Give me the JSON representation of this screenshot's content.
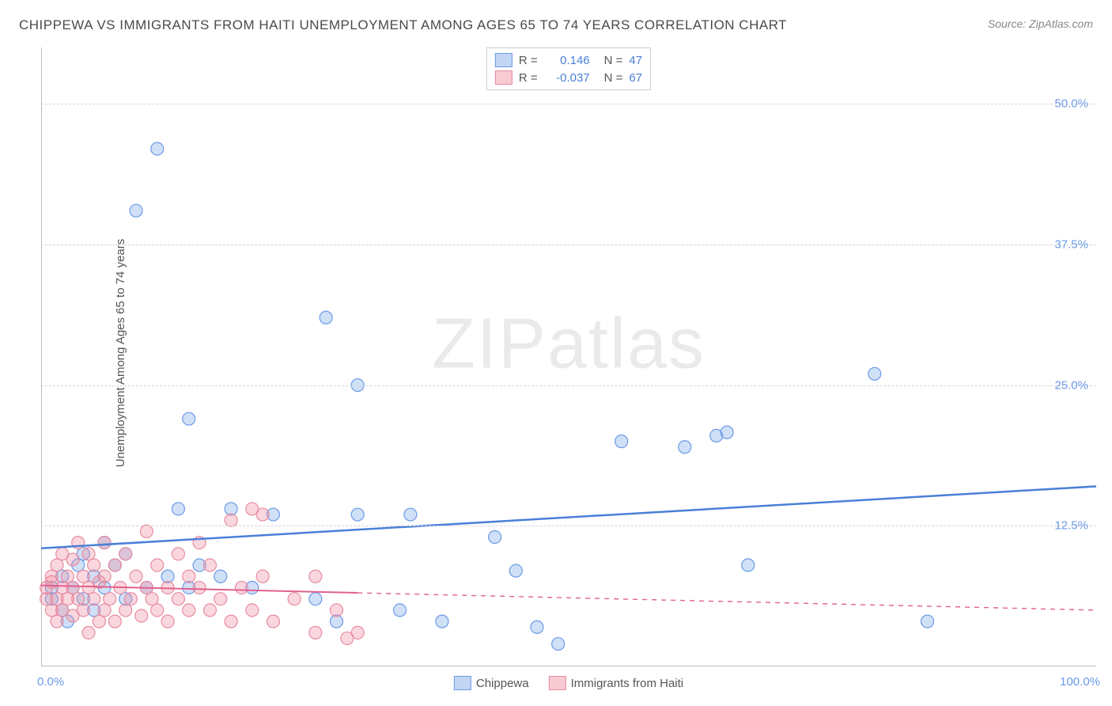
{
  "title": "CHIPPEWA VS IMMIGRANTS FROM HAITI UNEMPLOYMENT AMONG AGES 65 TO 74 YEARS CORRELATION CHART",
  "source": "Source: ZipAtlas.com",
  "y_axis_label": "Unemployment Among Ages 65 to 74 years",
  "watermark_zip": "ZIP",
  "watermark_atlas": "atlas",
  "chart": {
    "type": "scatter",
    "xlim": [
      0,
      100
    ],
    "ylim": [
      0,
      55
    ],
    "y_ticks": [
      12.5,
      25.0,
      37.5,
      50.0
    ],
    "y_tick_labels": [
      "12.5%",
      "25.0%",
      "37.5%",
      "50.0%"
    ],
    "x_min_label": "0.0%",
    "x_max_label": "100.0%",
    "grid_color": "#d5d5d5",
    "background_color": "#ffffff",
    "marker_radius": 8,
    "series": [
      {
        "name": "Chippewa",
        "fill": "rgba(120,165,230,0.35)",
        "stroke": "#6b9ae8",
        "r_value": "0.146",
        "n_value": "47",
        "trend": {
          "x1": 0,
          "y1": 10.5,
          "x2": 100,
          "y2": 16.0,
          "solid_until_x": 100,
          "color": "#4a7fd8",
          "width": 2.5
        },
        "points": [
          [
            1,
            6
          ],
          [
            1,
            7
          ],
          [
            2,
            5
          ],
          [
            2,
            8
          ],
          [
            2.5,
            4
          ],
          [
            3,
            7
          ],
          [
            3.5,
            9
          ],
          [
            4,
            6
          ],
          [
            4,
            10
          ],
          [
            5,
            5
          ],
          [
            5,
            8
          ],
          [
            6,
            7
          ],
          [
            6,
            11
          ],
          [
            7,
            9
          ],
          [
            8,
            6
          ],
          [
            8,
            10
          ],
          [
            9,
            40.5
          ],
          [
            10,
            7
          ],
          [
            11,
            46
          ],
          [
            12,
            8
          ],
          [
            13,
            14
          ],
          [
            14,
            22
          ],
          [
            14,
            7
          ],
          [
            15,
            9
          ],
          [
            17,
            8
          ],
          [
            18,
            14
          ],
          [
            20,
            7
          ],
          [
            22,
            13.5
          ],
          [
            26,
            6
          ],
          [
            27,
            31
          ],
          [
            28,
            4
          ],
          [
            30,
            13.5
          ],
          [
            30,
            25
          ],
          [
            34,
            5
          ],
          [
            35,
            13.5
          ],
          [
            38,
            4
          ],
          [
            43,
            11.5
          ],
          [
            45,
            8.5
          ],
          [
            47,
            3.5
          ],
          [
            49,
            2
          ],
          [
            55,
            20
          ],
          [
            61,
            19.5
          ],
          [
            64,
            20.5
          ],
          [
            65,
            20.8
          ],
          [
            67,
            9
          ],
          [
            79,
            26
          ],
          [
            84,
            4
          ]
        ]
      },
      {
        "name": "Immigrants from Haiti",
        "fill": "rgba(240,140,160,0.35)",
        "stroke": "#e88ba0",
        "r_value": "-0.037",
        "n_value": "67",
        "trend": {
          "x1": 0,
          "y1": 7.2,
          "x2": 100,
          "y2": 5.0,
          "solid_until_x": 30,
          "color": "#e06090",
          "width": 2
        },
        "points": [
          [
            0.5,
            6
          ],
          [
            0.5,
            7
          ],
          [
            1,
            5
          ],
          [
            1,
            7.5
          ],
          [
            1,
            8
          ],
          [
            1.5,
            4
          ],
          [
            1.5,
            6
          ],
          [
            1.5,
            9
          ],
          [
            2,
            5
          ],
          [
            2,
            7
          ],
          [
            2,
            10
          ],
          [
            2.5,
            6
          ],
          [
            2.5,
            8
          ],
          [
            3,
            4.5
          ],
          [
            3,
            7
          ],
          [
            3,
            9.5
          ],
          [
            3.5,
            6
          ],
          [
            3.5,
            11
          ],
          [
            4,
            5
          ],
          [
            4,
            8
          ],
          [
            4.5,
            3
          ],
          [
            4.5,
            7
          ],
          [
            4.5,
            10
          ],
          [
            5,
            6
          ],
          [
            5,
            9
          ],
          [
            5.5,
            4
          ],
          [
            5.5,
            7.5
          ],
          [
            6,
            5
          ],
          [
            6,
            8
          ],
          [
            6,
            11
          ],
          [
            6.5,
            6
          ],
          [
            7,
            4
          ],
          [
            7,
            9
          ],
          [
            7.5,
            7
          ],
          [
            8,
            5
          ],
          [
            8,
            10
          ],
          [
            8.5,
            6
          ],
          [
            9,
            8
          ],
          [
            9.5,
            4.5
          ],
          [
            10,
            7
          ],
          [
            10,
            12
          ],
          [
            10.5,
            6
          ],
          [
            11,
            5
          ],
          [
            11,
            9
          ],
          [
            12,
            4
          ],
          [
            12,
            7
          ],
          [
            13,
            6
          ],
          [
            13,
            10
          ],
          [
            14,
            5
          ],
          [
            14,
            8
          ],
          [
            15,
            7
          ],
          [
            15,
            11
          ],
          [
            16,
            5
          ],
          [
            16,
            9
          ],
          [
            17,
            6
          ],
          [
            18,
            4
          ],
          [
            18,
            13
          ],
          [
            19,
            7
          ],
          [
            20,
            5
          ],
          [
            20,
            14
          ],
          [
            21,
            8
          ],
          [
            21,
            13.5
          ],
          [
            22,
            4
          ],
          [
            24,
            6
          ],
          [
            26,
            8
          ],
          [
            26,
            3
          ],
          [
            28,
            5
          ],
          [
            29,
            2.5
          ],
          [
            30,
            3
          ]
        ]
      }
    ]
  },
  "bottom_legend": [
    {
      "label": "Chippewa",
      "swatch": "blue"
    },
    {
      "label": "Immigrants from Haiti",
      "swatch": "pink"
    }
  ]
}
